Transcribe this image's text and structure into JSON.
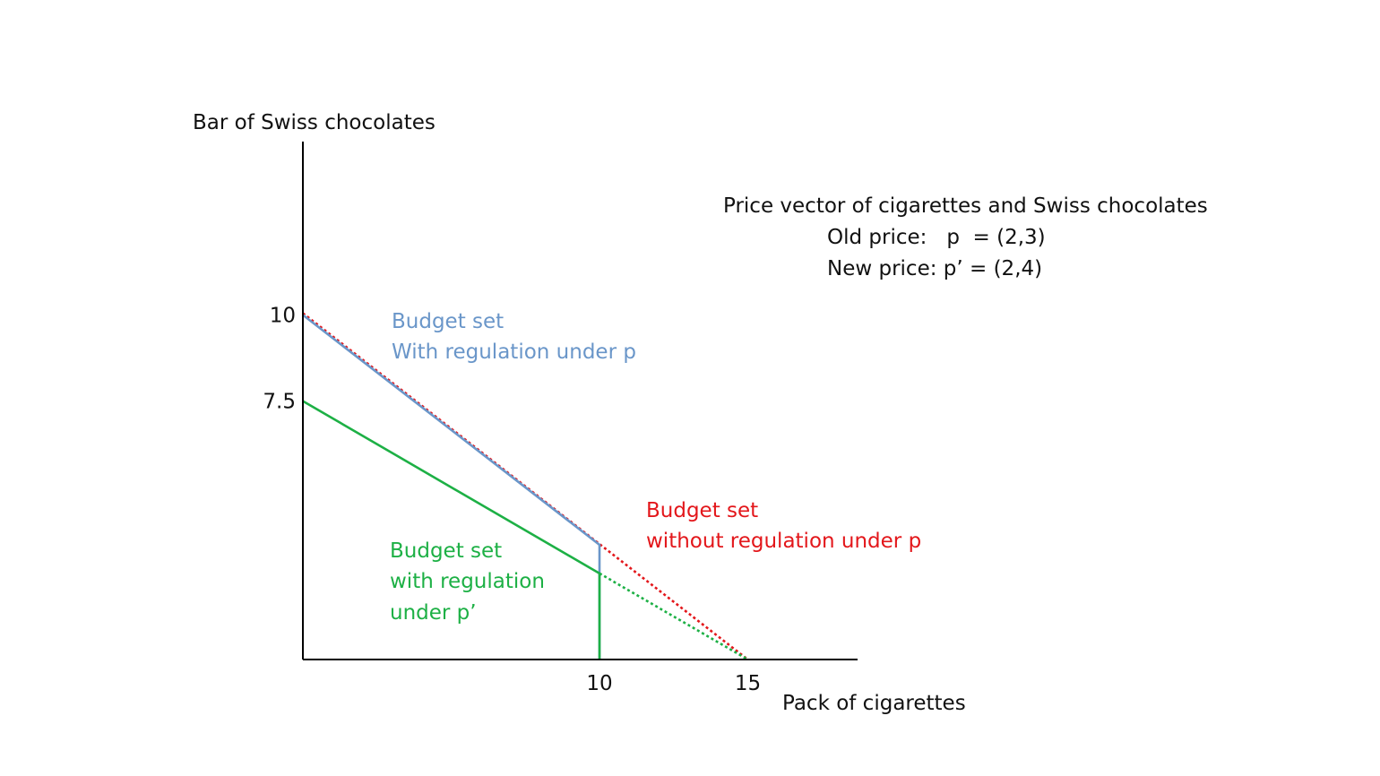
{
  "chart_data": {
    "type": "line",
    "xlabel": "Pack of cigarettes",
    "ylabel": "Bar of Swiss chocolates",
    "xlim": [
      0,
      19.5
    ],
    "ylim": [
      0,
      15.1
    ],
    "x_ticks": [
      {
        "value": 10,
        "label": "10"
      },
      {
        "value": 15,
        "label": "15"
      }
    ],
    "y_ticks": [
      {
        "value": 10,
        "label": "10"
      },
      {
        "value": 7.5,
        "label": "7.5"
      }
    ],
    "price_box": {
      "title": "Price vector of cigarettes and Swiss chocolates",
      "old_price": "Old price:   p  = (2,3)",
      "new_price": "New price: p’ = (2,4)"
    },
    "colors": {
      "axis": "#000000",
      "red": "#e3171b",
      "blue": "#6a96c9",
      "green": "#1db045"
    },
    "series": [
      {
        "id": "without-regulation-p",
        "label_lines": [
          "Budget set",
          "without regulation under p"
        ],
        "color": "#e3171b",
        "style": "dotted",
        "points": [
          [
            0,
            10
          ],
          [
            15,
            0
          ]
        ]
      },
      {
        "id": "with-regulation-p",
        "label_lines": [
          "Budget set",
          "With regulation under p"
        ],
        "color": "#6a96c9",
        "style": "solid",
        "points": [
          [
            0,
            10
          ],
          [
            10,
            3.33
          ],
          [
            10,
            0
          ]
        ]
      },
      {
        "id": "with-regulation-p-prime",
        "label_lines": [
          "Budget set",
          "with regulation",
          "under p’"
        ],
        "color": "#1db045",
        "style": "solid",
        "points": [
          [
            0,
            7.5
          ],
          [
            10,
            2.5
          ],
          [
            10,
            0
          ]
        ]
      },
      {
        "id": "p-prime-extension",
        "label_lines": [],
        "color": "#1db045",
        "style": "dotted",
        "points": [
          [
            10,
            2.5
          ],
          [
            15,
            0
          ]
        ]
      }
    ]
  }
}
